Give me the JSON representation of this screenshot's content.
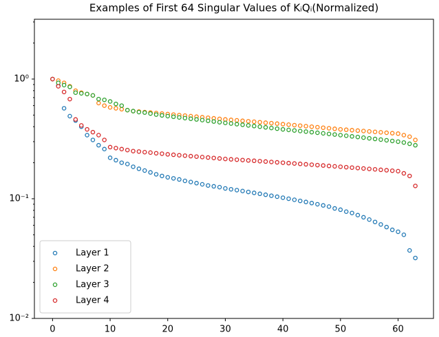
{
  "chart_data": {
    "type": "scatter",
    "title": "Examples of First 64 Singular Values of KᵢQᵢ(Normalized)",
    "x": [
      0,
      1,
      2,
      3,
      4,
      5,
      6,
      7,
      8,
      9,
      10,
      11,
      12,
      13,
      14,
      15,
      16,
      17,
      18,
      19,
      20,
      21,
      22,
      23,
      24,
      25,
      26,
      27,
      28,
      29,
      30,
      31,
      32,
      33,
      34,
      35,
      36,
      37,
      38,
      39,
      40,
      41,
      42,
      43,
      44,
      45,
      46,
      47,
      48,
      49,
      50,
      51,
      52,
      53,
      54,
      55,
      56,
      57,
      58,
      59,
      60,
      61,
      62,
      63
    ],
    "series": [
      {
        "name": "Layer 1",
        "color": "#1f77b4",
        "values": [
          1.0,
          0.88,
          0.57,
          0.49,
          0.45,
          0.4,
          0.34,
          0.31,
          0.28,
          0.26,
          0.22,
          0.21,
          0.2,
          0.195,
          0.185,
          0.178,
          0.172,
          0.166,
          0.16,
          0.155,
          0.151,
          0.148,
          0.145,
          0.141,
          0.138,
          0.135,
          0.132,
          0.129,
          0.127,
          0.125,
          0.122,
          0.12,
          0.118,
          0.116,
          0.114,
          0.112,
          0.11,
          0.108,
          0.106,
          0.104,
          0.102,
          0.1,
          0.098,
          0.096,
          0.094,
          0.092,
          0.09,
          0.088,
          0.086,
          0.083,
          0.081,
          0.078,
          0.076,
          0.073,
          0.07,
          0.067,
          0.064,
          0.061,
          0.058,
          0.055,
          0.053,
          0.05,
          0.037,
          0.032
        ]
      },
      {
        "name": "Layer 2",
        "color": "#ff7f0e",
        "values": [
          1.0,
          0.97,
          0.93,
          0.87,
          0.8,
          0.77,
          0.75,
          0.73,
          0.63,
          0.6,
          0.58,
          0.57,
          0.56,
          0.55,
          0.54,
          0.535,
          0.53,
          0.525,
          0.52,
          0.515,
          0.51,
          0.505,
          0.5,
          0.495,
          0.49,
          0.485,
          0.48,
          0.475,
          0.47,
          0.465,
          0.46,
          0.456,
          0.452,
          0.448,
          0.444,
          0.44,
          0.436,
          0.432,
          0.428,
          0.424,
          0.42,
          0.416,
          0.412,
          0.408,
          0.404,
          0.4,
          0.396,
          0.392,
          0.388,
          0.384,
          0.38,
          0.377,
          0.374,
          0.371,
          0.368,
          0.365,
          0.362,
          0.359,
          0.356,
          0.353,
          0.35,
          0.34,
          0.33,
          0.31
        ]
      },
      {
        "name": "Layer 3",
        "color": "#2ca02c",
        "values": [
          1.0,
          0.93,
          0.89,
          0.86,
          0.77,
          0.76,
          0.75,
          0.73,
          0.68,
          0.67,
          0.65,
          0.62,
          0.6,
          0.55,
          0.54,
          0.53,
          0.525,
          0.515,
          0.505,
          0.497,
          0.49,
          0.484,
          0.478,
          0.472,
          0.466,
          0.46,
          0.454,
          0.448,
          0.442,
          0.436,
          0.43,
          0.425,
          0.42,
          0.415,
          0.41,
          0.405,
          0.4,
          0.395,
          0.39,
          0.385,
          0.38,
          0.376,
          0.372,
          0.368,
          0.364,
          0.36,
          0.356,
          0.352,
          0.348,
          0.344,
          0.34,
          0.336,
          0.332,
          0.328,
          0.324,
          0.32,
          0.316,
          0.312,
          0.308,
          0.304,
          0.3,
          0.295,
          0.288,
          0.28
        ]
      },
      {
        "name": "Layer 4",
        "color": "#d62728",
        "values": [
          1.0,
          0.87,
          0.78,
          0.68,
          0.46,
          0.41,
          0.38,
          0.36,
          0.34,
          0.31,
          0.27,
          0.265,
          0.26,
          0.255,
          0.25,
          0.248,
          0.245,
          0.243,
          0.24,
          0.238,
          0.235,
          0.233,
          0.231,
          0.229,
          0.227,
          0.225,
          0.223,
          0.221,
          0.219,
          0.217,
          0.215,
          0.2135,
          0.212,
          0.2105,
          0.209,
          0.2075,
          0.206,
          0.2045,
          0.203,
          0.2015,
          0.2,
          0.1985,
          0.197,
          0.1955,
          0.194,
          0.1925,
          0.191,
          0.1895,
          0.188,
          0.1865,
          0.185,
          0.1835,
          0.182,
          0.1805,
          0.179,
          0.1775,
          0.176,
          0.1745,
          0.173,
          0.1715,
          0.17,
          0.163,
          0.155,
          0.128
        ]
      }
    ],
    "xlim": [
      -3.15,
      66.15
    ],
    "xticks": [
      0,
      10,
      20,
      30,
      40,
      50,
      60
    ],
    "ylim": [
      0.01,
      3.16
    ],
    "log_y": true,
    "yticks": [
      {
        "value": 0.01,
        "label": "10⁻²"
      },
      {
        "value": 0.1,
        "label": "10⁻¹"
      },
      {
        "value": 1,
        "label": "10⁰"
      }
    ],
    "legend": "lower left"
  }
}
